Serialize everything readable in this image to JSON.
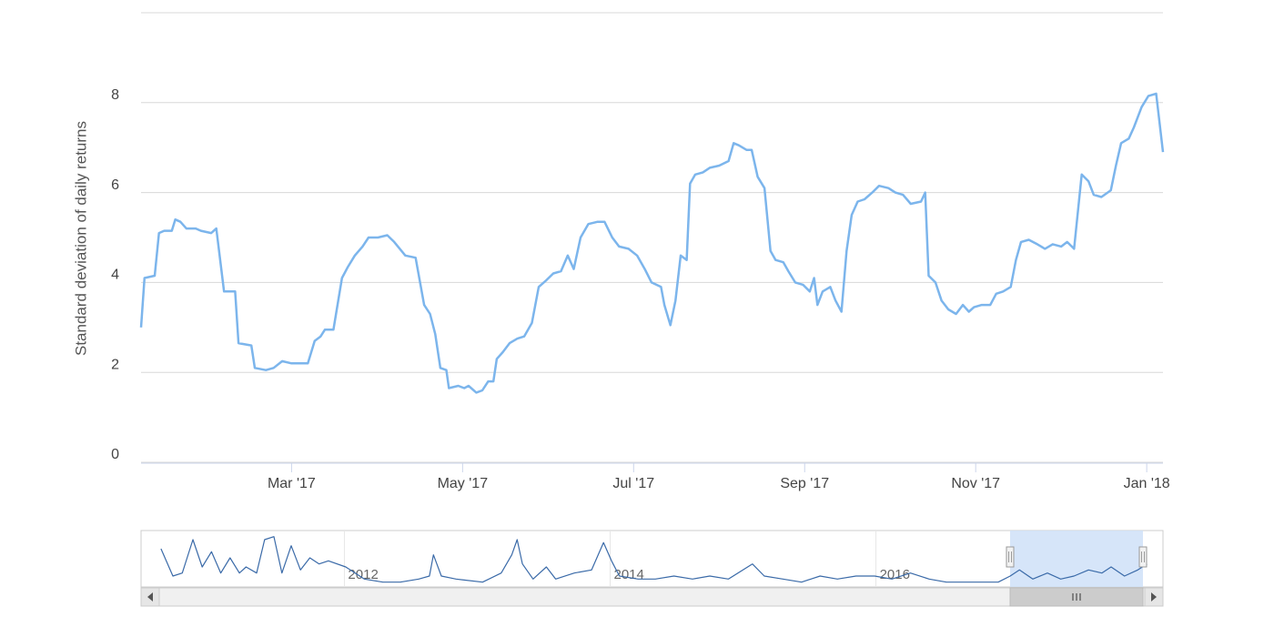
{
  "chart_data": [
    {
      "type": "line",
      "y_label": "Standard deviation of daily returns",
      "x": [
        0.24,
        0.28,
        0.4,
        0.45,
        0.51,
        0.6,
        0.64,
        0.7,
        0.77,
        0.88,
        0.94,
        1.06,
        1.12,
        1.21,
        1.34,
        1.38,
        1.53,
        1.57,
        1.7,
        1.79,
        1.89,
        2.0,
        2.11,
        2.19,
        2.27,
        2.34,
        2.39,
        2.49,
        2.59,
        2.66,
        2.74,
        2.83,
        2.9,
        3.01,
        3.12,
        3.2,
        3.33,
        3.45,
        3.55,
        3.62,
        3.68,
        3.74,
        3.81,
        3.84,
        3.95,
        4.02,
        4.07,
        4.16,
        4.23,
        4.3,
        4.36,
        4.4,
        4.47,
        4.55,
        4.64,
        4.72,
        4.81,
        4.89,
        4.98,
        5.06,
        5.15,
        5.23,
        5.3,
        5.38,
        5.47,
        5.58,
        5.66,
        5.75,
        5.83,
        5.94,
        6.04,
        6.13,
        6.21,
        6.32,
        6.36,
        6.43,
        6.49,
        6.55,
        6.62,
        6.66,
        6.72,
        6.81,
        6.89,
        7.0,
        7.11,
        7.17,
        7.23,
        7.32,
        7.38,
        7.45,
        7.53,
        7.6,
        7.66,
        7.75,
        7.81,
        7.89,
        7.98,
        8.06,
        8.11,
        8.15,
        8.21,
        8.3,
        8.36,
        8.43,
        8.49,
        8.55,
        8.62,
        8.7,
        8.79,
        8.87,
        8.98,
        9.06,
        9.15,
        9.24,
        9.36,
        9.41,
        9.45,
        9.53,
        9.6,
        9.68,
        9.77,
        9.85,
        9.92,
        9.98,
        10.07,
        10.17,
        10.24,
        10.32,
        10.41,
        10.47,
        10.53,
        10.62,
        10.72,
        10.81,
        10.9,
        11.0,
        11.07,
        11.15,
        11.24,
        11.32,
        11.38,
        11.47,
        11.58,
        11.64,
        11.7,
        11.79,
        11.85,
        11.94,
        12.02,
        12.11,
        12.19
      ],
      "series": [
        {
          "color": "#7cb5ec",
          "values": [
            3.0,
            4.1,
            4.15,
            5.1,
            5.15,
            5.15,
            5.4,
            5.35,
            5.2,
            5.2,
            5.15,
            5.1,
            5.2,
            3.8,
            3.8,
            2.65,
            2.6,
            2.1,
            2.05,
            2.1,
            2.25,
            2.2,
            2.2,
            2.2,
            2.7,
            2.8,
            2.95,
            2.95,
            4.1,
            4.35,
            4.6,
            4.8,
            5.0,
            5.0,
            5.05,
            4.9,
            4.6,
            4.55,
            3.5,
            3.3,
            2.85,
            2.1,
            2.05,
            1.65,
            1.7,
            1.65,
            1.7,
            1.55,
            1.6,
            1.8,
            1.8,
            2.3,
            2.45,
            2.65,
            2.75,
            2.8,
            3.1,
            3.9,
            4.05,
            4.2,
            4.25,
            4.6,
            4.3,
            5.0,
            5.3,
            5.35,
            5.35,
            5.0,
            4.8,
            4.75,
            4.6,
            4.3,
            4.0,
            3.9,
            3.5,
            3.05,
            3.6,
            4.6,
            4.5,
            6.2,
            6.4,
            6.45,
            6.55,
            6.6,
            6.7,
            7.1,
            7.05,
            6.95,
            6.95,
            6.35,
            6.1,
            4.7,
            4.5,
            4.45,
            4.25,
            4.0,
            3.95,
            3.8,
            4.1,
            3.5,
            3.8,
            3.9,
            3.6,
            3.35,
            4.7,
            5.5,
            5.8,
            5.85,
            6.0,
            6.15,
            6.1,
            6.0,
            5.95,
            5.75,
            5.8,
            6.0,
            4.15,
            4.0,
            3.6,
            3.4,
            3.3,
            3.5,
            3.35,
            3.45,
            3.5,
            3.5,
            3.75,
            3.8,
            3.9,
            4.5,
            4.9,
            4.95,
            4.85,
            4.75,
            4.85,
            4.8,
            4.9,
            4.75,
            6.4,
            6.25,
            5.95,
            5.9,
            6.05,
            6.6,
            7.1,
            7.2,
            7.45,
            7.9,
            8.15,
            8.2,
            6.9
          ]
        }
      ],
      "xlim": [
        0.24,
        12.19
      ],
      "xticks": [
        {
          "value": 2,
          "label": "Mar '17"
        },
        {
          "value": 4,
          "label": "May '17"
        },
        {
          "value": 6,
          "label": "Jul '17"
        },
        {
          "value": 8,
          "label": "Sep '17"
        },
        {
          "value": 10,
          "label": "Nov '17"
        },
        {
          "value": 12,
          "label": "Jan '18"
        }
      ],
      "ylim": [
        0,
        10
      ],
      "yticks": [
        0,
        2,
        4,
        6,
        8
      ],
      "grid": true
    },
    {
      "type": "line",
      "x": [
        2010.62,
        2010.71,
        2010.78,
        2010.86,
        2010.93,
        2011.0,
        2011.07,
        2011.14,
        2011.21,
        2011.26,
        2011.34,
        2011.4,
        2011.47,
        2011.53,
        2011.6,
        2011.67,
        2011.74,
        2011.81,
        2011.88,
        2012.01,
        2012.15,
        2012.29,
        2012.42,
        2012.56,
        2012.64,
        2012.67,
        2012.73,
        2012.84,
        2013.04,
        2013.18,
        2013.26,
        2013.3,
        2013.34,
        2013.42,
        2013.52,
        2013.59,
        2013.73,
        2013.86,
        2013.95,
        2014.01,
        2014.07,
        2014.21,
        2014.34,
        2014.48,
        2014.62,
        2014.75,
        2014.89,
        2015.07,
        2015.16,
        2015.3,
        2015.44,
        2015.58,
        2015.71,
        2015.85,
        2015.99,
        2016.12,
        2016.26,
        2016.4,
        2016.53,
        2016.67,
        2016.81,
        2016.92,
        2017.01,
        2017.08,
        2017.18,
        2017.29,
        2017.39,
        2017.49,
        2017.6,
        2017.7,
        2017.77,
        2017.87,
        2017.97,
        2018.04
      ],
      "series": [
        {
          "color": "#3a6aa8",
          "values": [
            12,
            3,
            4,
            15,
            6,
            11,
            4,
            9,
            4,
            6,
            4,
            15,
            16,
            4,
            13,
            5,
            9,
            7,
            8,
            6,
            2,
            1,
            1,
            2,
            3,
            10,
            3,
            2,
            1,
            4,
            10,
            15,
            7,
            2,
            6,
            2,
            4,
            5,
            14,
            8,
            3,
            2,
            2,
            3,
            2,
            3,
            2,
            7,
            3,
            2,
            1,
            3,
            2,
            3,
            3,
            2,
            4,
            2,
            1,
            1,
            1,
            1,
            3,
            5,
            2,
            4,
            2,
            3,
            5,
            4,
            6,
            3,
            5,
            7
          ]
        }
      ],
      "xlim": [
        2010.47,
        2018.16
      ],
      "xticks": [
        2012,
        2014,
        2016
      ],
      "ylim": [
        0,
        18
      ]
    }
  ]
}
